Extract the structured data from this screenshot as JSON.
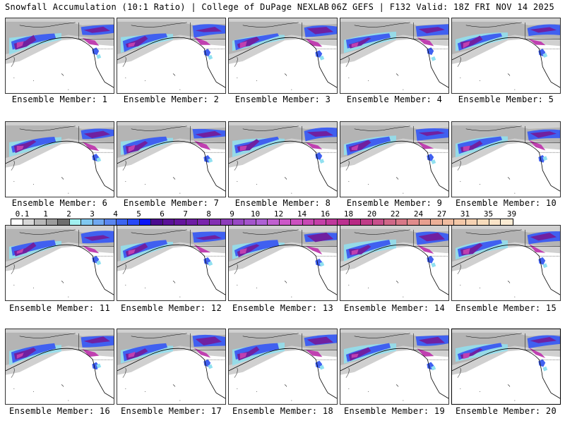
{
  "header": {
    "title_left": "Snowfall Accumulation (10:1 Ratio) | College of DuPage NEXLAB",
    "title_right": "06Z GEFS | F132 Valid: 18Z FRI NOV 14 2025"
  },
  "colorbar": {
    "units_hint": "inches",
    "tick_labels": [
      "0.1",
      "1",
      "2",
      "3",
      "4",
      "5",
      "6",
      "7",
      "8",
      "9",
      "10",
      "12",
      "14",
      "16",
      "18",
      "20",
      "22",
      "24",
      "27",
      "31",
      "35",
      "39"
    ],
    "colors": [
      "#ffffff",
      "#d8d8d8",
      "#b8b8b8",
      "#9c9c9c",
      "#6e6e6e",
      "#a0f0f0",
      "#80c8f0",
      "#70a8f0",
      "#5a86f0",
      "#3c64f0",
      "#2848f8",
      "#0a14f8",
      "#4a0a90",
      "#5a1098",
      "#64149c",
      "#6e1ca4",
      "#7a24ac",
      "#8430b4",
      "#8e3cbc",
      "#9848c4",
      "#a454cc",
      "#ae60d4",
      "#c060d0",
      "#cc58c8",
      "#cc50c0",
      "#c848b4",
      "#c440a8",
      "#c0389c",
      "#bc3090",
      "#b82884",
      "#c03c88",
      "#c8508c",
      "#d06888",
      "#d87888",
      "#e08c8c",
      "#e8a090",
      "#ecb098",
      "#f0bca0",
      "#f4c8a8",
      "#f6d2b2",
      "#f8dcbc",
      "#fae4c8",
      "#fcecd4"
    ]
  },
  "members": [
    {
      "label": "Ensemble Member: 1"
    },
    {
      "label": "Ensemble Member: 2"
    },
    {
      "label": "Ensemble Member: 3"
    },
    {
      "label": "Ensemble Member: 4"
    },
    {
      "label": "Ensemble Member: 5"
    },
    {
      "label": "Ensemble Member: 6"
    },
    {
      "label": "Ensemble Member: 7"
    },
    {
      "label": "Ensemble Member: 8"
    },
    {
      "label": "Ensemble Member: 9"
    },
    {
      "label": "Ensemble Member: 10"
    },
    {
      "label": "Ensemble Member: 11"
    },
    {
      "label": "Ensemble Member: 12"
    },
    {
      "label": "Ensemble Member: 13"
    },
    {
      "label": "Ensemble Member: 14"
    },
    {
      "label": "Ensemble Member: 15"
    },
    {
      "label": "Ensemble Member: 16"
    },
    {
      "label": "Ensemble Member: 17"
    },
    {
      "label": "Ensemble Member: 18"
    },
    {
      "label": "Ensemble Member: 19"
    },
    {
      "label": "Ensemble Member: 20"
    }
  ],
  "selected_member": 20,
  "map_colors": {
    "light_gray": "#d0d0d0",
    "mid_gray": "#a8a8a8",
    "cyan": "#90e0f0",
    "blue": "#4060f0",
    "purple": "#7020a0",
    "magenta": "#c040b0",
    "coast": "#000000"
  }
}
